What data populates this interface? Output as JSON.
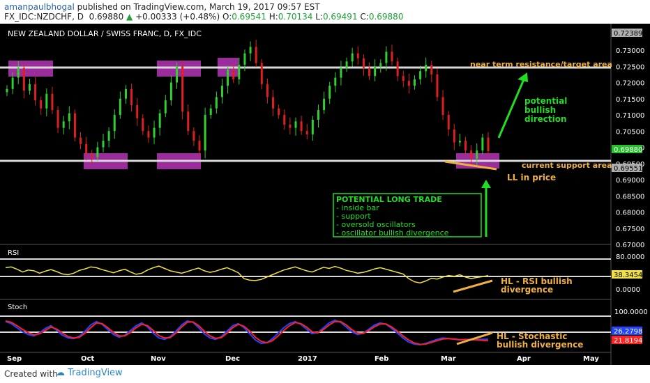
{
  "header": {
    "author": "amanpaulbhogal",
    "published_text": " published on TradingView.com, March 19, 2017 09:57 EST",
    "symbol": "FX_IDC:NZDCHF, D",
    "last": "0.69880",
    "change": "+0.00333 (+0.48%)",
    "o_label": "O:",
    "o": "0.69541",
    "h_label": "H:",
    "h": "0.70134",
    "l_label": "L:",
    "l": "0.69491",
    "c_label": "C:",
    "c": "0.69880"
  },
  "chart_title": "NEW ZEALAND DOLLAR / SWISS FRANC, D, FX_IDC",
  "footer": {
    "created_with": "Created with",
    "brand": "TradingView"
  },
  "colors": {
    "up": "#2fd12f",
    "down": "#e02020",
    "rsi": "#f0e040",
    "stoch_k": "#2244ff",
    "stoch_d": "#ff2020",
    "annotation_orange": "#f0b040",
    "annotation_green": "#22dd22",
    "box": "#9b2c9b"
  },
  "chart_data": [
    {
      "type": "candlestick",
      "title": "NEW ZEALAND DOLLAR / SWISS FRANC, D, FX_IDC",
      "ylim": [
        0.67,
        0.7245
      ],
      "price_axis_ticks": [
        "0.73000",
        "0.72500",
        "0.72000",
        "0.71500",
        "0.71000",
        "0.70500",
        "0.70000",
        "0.69500",
        "0.69000",
        "0.68500",
        "0.68000",
        "0.67500",
        "0.67000"
      ],
      "price_tags": [
        "0.72389",
        "0.69880",
        "0.69551"
      ],
      "x_tick_labels": [
        "Sep",
        "Oct",
        "Nov",
        "Dec",
        "2017",
        "Feb",
        "Mar",
        "Apr",
        "May"
      ],
      "closes": [
        0.718,
        0.7215,
        0.7245,
        0.7175,
        0.7195,
        0.7145,
        0.712,
        0.7165,
        0.7115,
        0.706,
        0.708,
        0.7105,
        0.703,
        0.701,
        0.698,
        0.697,
        0.7,
        0.702,
        0.705,
        0.71,
        0.715,
        0.718,
        0.713,
        0.709,
        0.705,
        0.703,
        0.706,
        0.7105,
        0.7145,
        0.72,
        0.725,
        0.711,
        0.705,
        0.702,
        0.699,
        0.71,
        0.712,
        0.7155,
        0.719,
        0.724,
        0.721,
        0.7255,
        0.729,
        0.731,
        0.726,
        0.7195,
        0.7155,
        0.712,
        0.71,
        0.707,
        0.706,
        0.708,
        0.705,
        0.704,
        0.7085,
        0.7115,
        0.715,
        0.719,
        0.7215,
        0.7245,
        0.7265,
        0.729,
        0.7275,
        0.7245,
        0.722,
        0.725,
        0.726,
        0.7295,
        0.7265,
        0.722,
        0.7205,
        0.719,
        0.721,
        0.7235,
        0.7255,
        0.7225,
        0.7155,
        0.71,
        0.7055,
        0.7015,
        0.702,
        0.699,
        0.6965,
        0.699,
        0.703,
        0.6988
      ],
      "annotations": [
        "near term resistance/target area",
        "potential bullish direction",
        "current support area",
        "LL in price",
        "POTENTIAL LONG TRADE",
        "- inside bar",
        "- support",
        "- oversold oscillators",
        "- oscillator bullish divergence"
      ]
    },
    {
      "type": "line",
      "title": "RSI",
      "ylim": [
        0,
        100
      ],
      "ticks": [
        "80.0000",
        "0.0000"
      ],
      "last_value_tag": "38.3454",
      "values": [
        58,
        60,
        54,
        47,
        52,
        50,
        44,
        49,
        53,
        48,
        42,
        40,
        44,
        51,
        55,
        60,
        58,
        53,
        49,
        45,
        50,
        54,
        47,
        41,
        44,
        52,
        58,
        62,
        56,
        50,
        47,
        44,
        48,
        53,
        57,
        50,
        46,
        49,
        54,
        58,
        52,
        45,
        30,
        26,
        25,
        28,
        34,
        40,
        46,
        52,
        56,
        60,
        55,
        50,
        47,
        53,
        59,
        56,
        61,
        57,
        51,
        48,
        44,
        46,
        50,
        55,
        58,
        54,
        50,
        46,
        42,
        30,
        22,
        19,
        24,
        31,
        29,
        34,
        38,
        36,
        40,
        34,
        30,
        33,
        35,
        38
      ],
      "annotations": [
        "HL - RSI bullish",
        "divergence"
      ]
    },
    {
      "type": "line",
      "title": "Stoch",
      "ylim": [
        0,
        100
      ],
      "ticks": [
        "100.0000"
      ],
      "series": [
        {
          "values": [
            78,
            72,
            60,
            48,
            40,
            36,
            45,
            58,
            66,
            52,
            38,
            30,
            28,
            35,
            50,
            68,
            78,
            70,
            55,
            40,
            32,
            38,
            52,
            66,
            74,
            62,
            44,
            30,
            26,
            34,
            50,
            68,
            80,
            76,
            60,
            42,
            30,
            26,
            34,
            50,
            66,
            72,
            60,
            42,
            24,
            14,
            16,
            28,
            44,
            60,
            72,
            78,
            70,
            56,
            42,
            46,
            60,
            74,
            82,
            76,
            62,
            48,
            40,
            44,
            56,
            68,
            74,
            70,
            58,
            44,
            30,
            18,
            12,
            10,
            14,
            20,
            26,
            30,
            28,
            26,
            24,
            26,
            25,
            26,
            26,
            26.28
          ]
        },
        {
          "values": [
            80,
            76,
            66,
            55,
            45,
            39,
            42,
            52,
            62,
            56,
            44,
            34,
            30,
            32,
            44,
            60,
            74,
            72,
            60,
            46,
            36,
            36,
            46,
            60,
            70,
            66,
            52,
            37,
            30,
            31,
            44,
            62,
            76,
            77,
            66,
            50,
            36,
            29,
            31,
            44,
            60,
            70,
            64,
            50,
            32,
            20,
            16,
            22,
            36,
            52,
            66,
            75,
            72,
            62,
            48,
            45,
            55,
            68,
            78,
            78,
            68,
            54,
            44,
            43,
            52,
            63,
            71,
            71,
            62,
            50,
            36,
            24,
            15,
            11,
            12,
            17,
            22,
            27,
            28,
            27,
            25,
            25,
            25,
            24,
            23,
            21.82
          ]
        }
      ],
      "last_value_tags": [
        "26.2798",
        "21.8194"
      ],
      "annotations": [
        "HL - Stochastic",
        "bullish divergence"
      ]
    }
  ]
}
